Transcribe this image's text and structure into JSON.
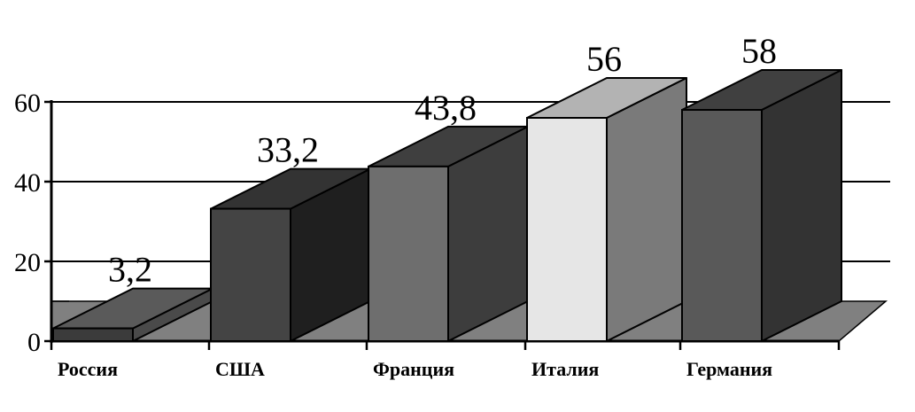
{
  "chart_data": {
    "type": "bar",
    "style": "3d",
    "categories": [
      "Россия",
      "США",
      "Франция",
      "Италия",
      "Германия"
    ],
    "values": [
      3.2,
      33.2,
      43.8,
      56,
      58
    ],
    "value_labels": [
      "3,2",
      "33,2",
      "43,8",
      "56",
      "58"
    ],
    "y_ticks": [
      "0",
      "20",
      "40",
      "60"
    ],
    "ylim": [
      0,
      60
    ],
    "grid": true,
    "legend": "none",
    "bar_colors": {
      "Россия": {
        "front": "#3b3b3b",
        "top": "#5a5a5a",
        "side": "#4a4a4a"
      },
      "США": {
        "front": "#444444",
        "top": "#333333",
        "side": "#1f1f1f"
      },
      "Франция": {
        "front": "#6e6e6e",
        "top": "#3f3f3f",
        "side": "#3d3d3d"
      },
      "Италия": {
        "front": "#e6e6e6",
        "top": "#b3b3b3",
        "side": "#7a7a7a"
      },
      "Германия": {
        "front": "#595959",
        "top": "#404040",
        "side": "#333333"
      }
    },
    "floor_color": "#808080"
  }
}
